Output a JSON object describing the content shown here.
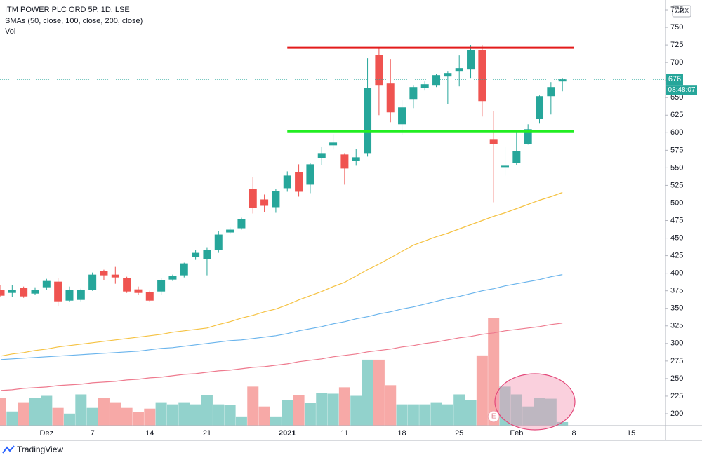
{
  "chart_data": {
    "type": "candlestick",
    "title": "ITM POWER PLC ORD 5P, 1D, LSE",
    "subtitle": "SMAs (50, close, 100, close, 200, close)",
    "volume_label": "Vol",
    "currency": "GBX",
    "countdown": "08:48:07",
    "last_price": 676,
    "brand": "TradingView",
    "categories": [
      null,
      null,
      null,
      null,
      "Dez",
      null,
      null,
      null,
      "7",
      null,
      null,
      null,
      null,
      "14",
      null,
      null,
      null,
      null,
      "21",
      null,
      null,
      null,
      null,
      null,
      null,
      "2021",
      null,
      null,
      null,
      null,
      "11",
      null,
      null,
      null,
      null,
      "18",
      null,
      null,
      null,
      null,
      "25",
      null,
      null,
      null,
      null,
      "Feb",
      null,
      null,
      null,
      null,
      "8",
      null,
      null,
      null,
      null,
      "15",
      null,
      null
    ],
    "open": [
      376,
      372,
      379,
      371,
      380,
      388,
      361,
      362,
      376,
      403,
      398,
      393,
      377,
      373,
      374,
      391,
      397,
      423,
      420,
      433,
      458,
      464,
      520,
      505,
      494,
      521,
      544,
      526,
      564,
      582,
      569,
      560,
      571,
      711,
      670,
      612,
      648,
      664,
      668,
      680,
      688,
      690,
      718,
      591,
      551,
      557,
      584,
      620,
      652,
      673,
      null,
      null,
      null,
      null,
      null,
      null,
      null,
      null
    ],
    "high": [
      383,
      383,
      381,
      380,
      392,
      393,
      381,
      378,
      401,
      405,
      409,
      395,
      381,
      375,
      393,
      398,
      415,
      433,
      437,
      460,
      465,
      479,
      537,
      512,
      520,
      545,
      555,
      557,
      580,
      598,
      571,
      577,
      706,
      720,
      705,
      647,
      668,
      673,
      684,
      688,
      710,
      725,
      725,
      631,
      580,
      604,
      612,
      653,
      672,
      678,
      null,
      null,
      null,
      null,
      null,
      null,
      null,
      null
    ],
    "low": [
      366,
      366,
      365,
      369,
      376,
      353,
      359,
      360,
      375,
      390,
      385,
      372,
      369,
      359,
      369,
      389,
      394,
      419,
      397,
      429,
      456,
      462,
      485,
      487,
      486,
      516,
      509,
      514,
      554,
      576,
      526,
      553,
      566,
      625,
      615,
      597,
      635,
      660,
      665,
      641,
      666,
      678,
      623,
      501,
      539,
      554,
      583,
      613,
      626,
      659,
      null,
      null,
      null,
      null,
      null,
      null,
      null,
      null
    ],
    "close": [
      368,
      376,
      367,
      376,
      389,
      360,
      376,
      376,
      398,
      397,
      394,
      374,
      372,
      361,
      390,
      396,
      414,
      429,
      433,
      455,
      462,
      477,
      493,
      496,
      517,
      539,
      516,
      555,
      571,
      586,
      549,
      565,
      664,
      668,
      629,
      636,
      665,
      669,
      682,
      685,
      692,
      718,
      645,
      584,
      553,
      574,
      605,
      652,
      665,
      676,
      null,
      null,
      null,
      null,
      null,
      null,
      null,
      null
    ],
    "volume": [
      39,
      20,
      33,
      39,
      42,
      25,
      17,
      44,
      25,
      39,
      33,
      25,
      19,
      24,
      33,
      30,
      33,
      30,
      43,
      30,
      29,
      13,
      55,
      27,
      13,
      36,
      43,
      32,
      46,
      45,
      54,
      42,
      93,
      93,
      57,
      30,
      30,
      30,
      33,
      30,
      44,
      36,
      99,
      152,
      55,
      44,
      27,
      39,
      38,
      5,
      null,
      null,
      null,
      null,
      null,
      null,
      null,
      null
    ],
    "vlim": [
      0,
      600
    ],
    "up_color": "#26a69a",
    "down_color": "#ef5350",
    "series": [
      {
        "color": "#f5c242",
        "values": [
          282,
          285,
          287,
          290,
          292,
          295,
          297,
          299,
          301,
          303,
          305,
          307,
          309,
          311,
          313,
          316,
          318,
          320,
          322,
          327,
          331,
          336,
          340,
          345,
          349,
          355,
          362,
          368,
          374,
          381,
          387,
          396,
          405,
          413,
          422,
          431,
          440,
          446,
          452,
          457,
          463,
          469,
          475,
          481,
          486,
          492,
          498,
          504,
          509,
          515,
          null,
          null,
          null,
          null,
          null,
          null,
          null,
          null
        ]
      },
      {
        "color": "#6ab4ec",
        "values": [
          277,
          278,
          279,
          280,
          281,
          282,
          283,
          284,
          285,
          286,
          287,
          288,
          289,
          291,
          293,
          294,
          296,
          298,
          300,
          302,
          304,
          305,
          307,
          309,
          311,
          314,
          318,
          321,
          324,
          328,
          331,
          335,
          338,
          342,
          345,
          349,
          352,
          356,
          360,
          364,
          367,
          371,
          375,
          378,
          382,
          385,
          388,
          391,
          395,
          398,
          null,
          null,
          null,
          null,
          null,
          null,
          null,
          null
        ]
      },
      {
        "color": "#ee7a8e",
        "values": [
          233,
          234,
          236,
          237,
          238,
          240,
          241,
          242,
          244,
          245,
          246,
          248,
          249,
          251,
          252,
          254,
          256,
          257,
          259,
          261,
          262,
          264,
          266,
          267,
          269,
          271,
          274,
          276,
          278,
          281,
          283,
          285,
          288,
          290,
          292,
          295,
          297,
          300,
          302,
          305,
          308,
          310,
          313,
          315,
          318,
          320,
          322,
          324,
          327,
          329,
          null,
          null,
          null,
          null,
          null,
          null,
          null,
          null
        ]
      }
    ],
    "levels": [
      {
        "value": 721,
        "color": "#e31b1b",
        "from": 25,
        "to": 50
      },
      {
        "value": 602,
        "color": "#22ee22",
        "from": 25,
        "to": 50
      }
    ],
    "events": [
      {
        "index": 43,
        "label": "E"
      }
    ],
    "ylim": [
      183,
      789
    ],
    "yticks": [
      200,
      225,
      250,
      275,
      300,
      325,
      350,
      375,
      400,
      425,
      450,
      475,
      500,
      525,
      550,
      575,
      600,
      625,
      650,
      675,
      700,
      725,
      750,
      775
    ]
  }
}
